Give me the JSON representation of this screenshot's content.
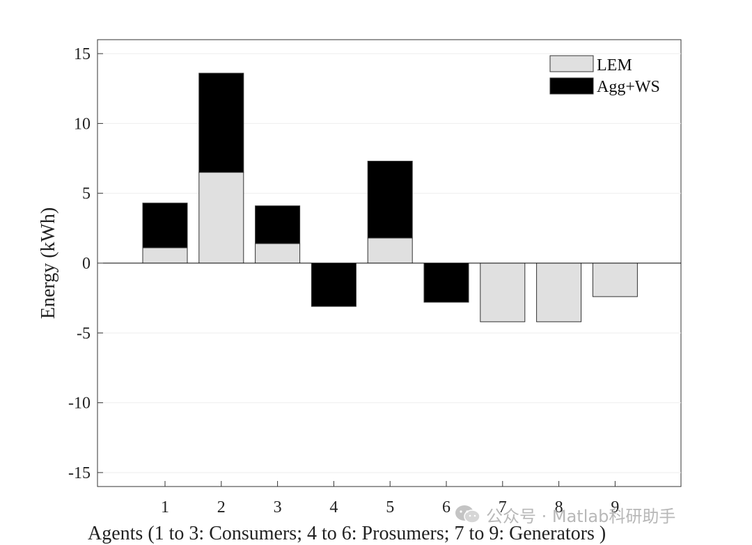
{
  "chart_data": {
    "type": "bar",
    "stacked": true,
    "categories": [
      "1",
      "2",
      "3",
      "4",
      "5",
      "6",
      "7",
      "8",
      "9"
    ],
    "series": [
      {
        "name": "LEM",
        "color": "#e0e0e0",
        "values": [
          1.1,
          6.5,
          1.4,
          0,
          1.8,
          0,
          -4.2,
          -4.2,
          -2.4
        ]
      },
      {
        "name": "Agg+WS",
        "color": "#000000",
        "values": [
          3.2,
          7.1,
          2.7,
          -3.1,
          5.5,
          -2.8,
          0,
          0,
          0
        ]
      }
    ],
    "xlabel": "Agents (1 to 3: Consumers; 4 to 6: Prosumers;  7 to 9: Generators )",
    "ylabel": "Energy (kWh)",
    "ylim": [
      -16,
      16
    ],
    "yticks": [
      15,
      10,
      5,
      0,
      -5,
      -10,
      -15
    ],
    "ytick_labels": [
      "15",
      "10",
      "5",
      "0",
      "-5",
      "-10",
      "-15"
    ],
    "grid": "horizontal",
    "legend_position": "top-right"
  },
  "watermark": {
    "text": "公众号 · Matlab科研助手",
    "icon": "wechat-icon"
  }
}
